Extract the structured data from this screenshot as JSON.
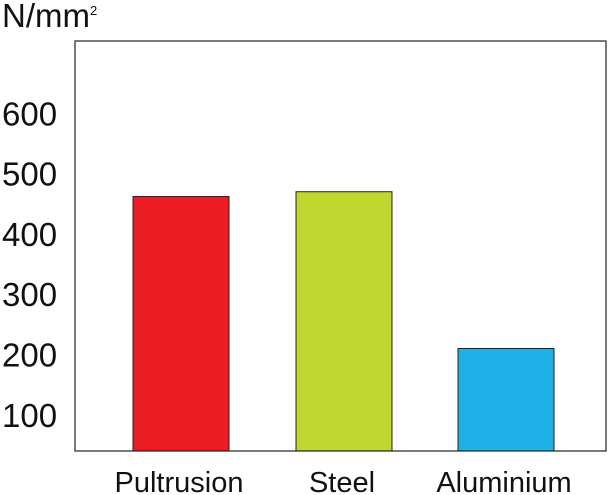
{
  "chart_data": {
    "type": "bar",
    "title": "",
    "ylabel": "N/mm",
    "ylabel_superscript": "2",
    "xlabel": "",
    "categories": [
      "Pultrusion",
      "Steel",
      "Aluminium"
    ],
    "values": [
      462,
      470,
      210
    ],
    "colors": [
      "#ed1c24",
      "#bfd730",
      "#1eb0e6"
    ],
    "bar_stroke": "#231f20",
    "yticks": [
      100,
      200,
      300,
      400,
      500,
      600
    ],
    "ytick_labels": [
      "100",
      "200",
      "300",
      "400",
      "500",
      "600"
    ],
    "ylim": [
      40,
      720
    ],
    "grid": false,
    "legend": "none"
  }
}
